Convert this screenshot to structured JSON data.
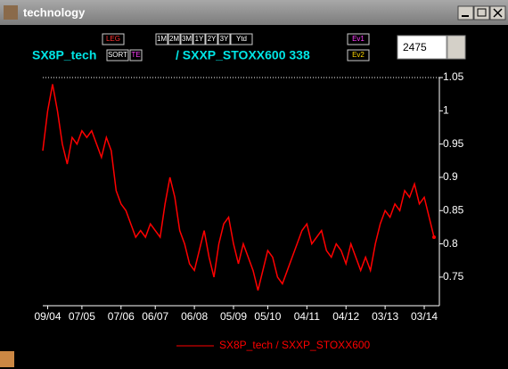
{
  "window": {
    "title": "technology",
    "input_value": "2475"
  },
  "toolbar": {
    "buttons": [
      "LEG",
      "1M",
      "2M",
      "3M",
      "1Y",
      "2Y",
      "3Y",
      "Ytd",
      "SORT",
      "TE",
      "Ev1",
      "Ev2"
    ],
    "symbol": "SX8P_tech",
    "ratio": "/ SXXP_STOXX600 338"
  },
  "chart_data": {
    "type": "line",
    "series": [
      {
        "name": "SX8P_tech / SXXP_STOXX600",
        "color": "#ff0000",
        "values": [
          0.94,
          1.0,
          1.04,
          1.0,
          0.95,
          0.92,
          0.96,
          0.95,
          0.97,
          0.96,
          0.97,
          0.95,
          0.93,
          0.96,
          0.94,
          0.88,
          0.86,
          0.85,
          0.83,
          0.81,
          0.82,
          0.81,
          0.83,
          0.82,
          0.81,
          0.86,
          0.9,
          0.87,
          0.82,
          0.8,
          0.77,
          0.76,
          0.79,
          0.82,
          0.78,
          0.75,
          0.8,
          0.83,
          0.84,
          0.8,
          0.77,
          0.8,
          0.78,
          0.76,
          0.73,
          0.76,
          0.79,
          0.78,
          0.75,
          0.74,
          0.76,
          0.78,
          0.8,
          0.82,
          0.83,
          0.8,
          0.81,
          0.82,
          0.79,
          0.78,
          0.8,
          0.79,
          0.77,
          0.8,
          0.78,
          0.76,
          0.78,
          0.76,
          0.8,
          0.83,
          0.85,
          0.84,
          0.86,
          0.85,
          0.88,
          0.87,
          0.89,
          0.86,
          0.87,
          0.84,
          0.81
        ]
      }
    ],
    "xlim": [
      0,
      80
    ],
    "xticks": [
      {
        "value": 1,
        "label": "09/04"
      },
      {
        "value": 8,
        "label": "07/05"
      },
      {
        "value": 16,
        "label": "07/06"
      },
      {
        "value": 23,
        "label": "06/07"
      },
      {
        "value": 31,
        "label": "06/08"
      },
      {
        "value": 39,
        "label": "05/09"
      },
      {
        "value": 46,
        "label": "05/10"
      },
      {
        "value": 54,
        "label": "04/11"
      },
      {
        "value": 62,
        "label": "04/12"
      },
      {
        "value": 70,
        "label": "03/13"
      },
      {
        "value": 78,
        "label": "03/14"
      }
    ],
    "ylim": [
      0.707,
      1.05
    ],
    "yticks": [
      0.75,
      0.8,
      0.85,
      0.9,
      0.95,
      1,
      1.05
    ]
  }
}
